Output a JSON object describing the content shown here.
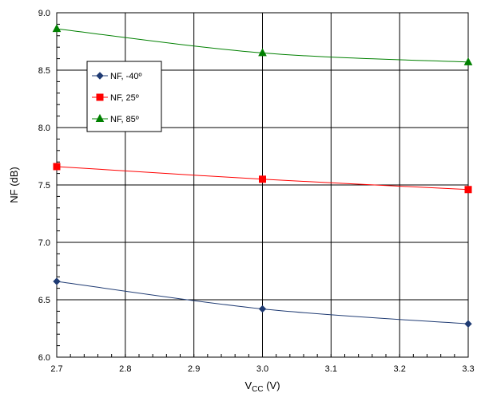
{
  "chart_data": {
    "type": "line",
    "x": [
      2.7,
      3.0,
      3.3
    ],
    "xlabel_main": "V",
    "xlabel_sub": "CC",
    "xlabel_unit": " (V)",
    "ylabel": "NF (dB)",
    "xlim": [
      2.7,
      3.3
    ],
    "ylim": [
      6.0,
      9.0
    ],
    "xticks": [
      "2.7",
      "2.8",
      "2.9",
      "3.0",
      "3.1",
      "3.2",
      "3.3"
    ],
    "yticks": [
      "6.0",
      "6.5",
      "7.0",
      "7.5",
      "8.0",
      "8.5",
      "9.0"
    ],
    "grid": true,
    "legend_position": "top-left",
    "series": [
      {
        "name": "NF, -40º",
        "values": [
          6.66,
          6.42,
          6.29
        ],
        "color": "#1f3b73",
        "marker": "diamond"
      },
      {
        "name": "NF, 25º",
        "values": [
          7.66,
          7.55,
          7.46
        ],
        "color": "#ff0000",
        "marker": "square"
      },
      {
        "name": "NF, 85º",
        "values": [
          8.86,
          8.65,
          8.57
        ],
        "color": "#008000",
        "marker": "triangle"
      }
    ]
  }
}
